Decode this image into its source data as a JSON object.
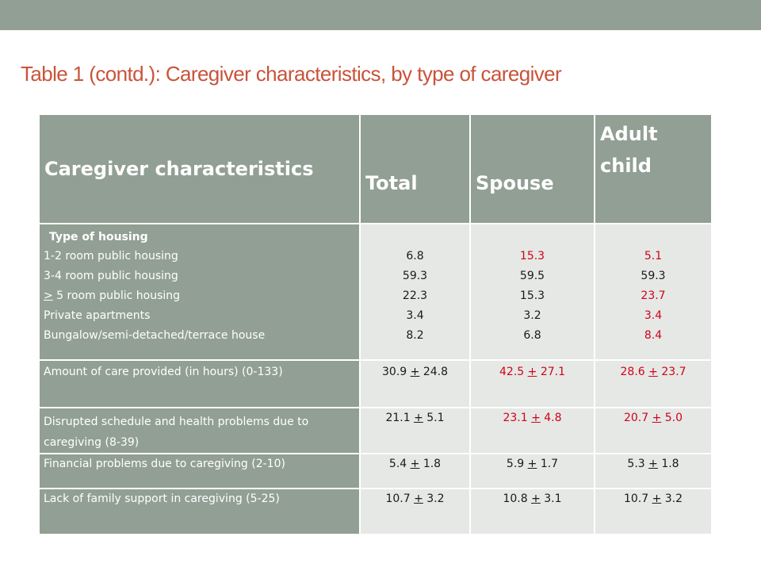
{
  "title": "Table 1 (contd.): Caregiver characteristics, by type of caregiver",
  "colors": {
    "header_bg": "#929f94",
    "title": "#c8543a",
    "highlight": "#d0021b",
    "cell_bg": "#e6e8e5"
  },
  "headers": {
    "col1": "Caregiver characteristics",
    "col2": "Total",
    "col3": "Spouse",
    "col4": "Adult child"
  },
  "housing": {
    "heading": "Type of housing",
    "rows": [
      {
        "label": "1-2 room public housing",
        "total": "6.8",
        "spouse": "15.3",
        "adult_child": "5.1"
      },
      {
        "label": "3-4 room public housing",
        "total": "59.3",
        "spouse": "59.5",
        "adult_child": "59.3"
      },
      {
        "label_sym": ">",
        "label": " 5 room public housing",
        "total": "22.3",
        "spouse": "15.3",
        "adult_child": "23.7"
      },
      {
        "label": "Private apartments",
        "total": "3.4",
        "spouse": "3.2",
        "adult_child": "3.4"
      },
      {
        "label": "Bungalow/semi-detached/terrace house",
        "total": "8.2",
        "spouse": "6.8",
        "adult_child": "8.4"
      }
    ]
  },
  "rows": [
    {
      "label": "Amount of care provided (in hours) (0-133)",
      "total": {
        "mean": "30.9",
        "pm": "+",
        "sd": "24.8"
      },
      "spouse": {
        "mean": "42.5",
        "pm": "+",
        "sd": "27.1"
      },
      "adult_child": {
        "mean": "28.6",
        "pm": "+",
        "sd": "23.7"
      }
    },
    {
      "label": "Disrupted schedule and health problems due to caregiving (8-39)",
      "total": {
        "mean": "21.1",
        "pm": "+",
        "sd": "5.1"
      },
      "spouse": {
        "mean": "23.1",
        "pm": "+",
        "sd": "4.8"
      },
      "adult_child": {
        "mean": "20.7",
        "pm": "+",
        "sd": "5.0"
      }
    },
    {
      "label": "Financial problems due to caregiving (2-10)",
      "total": {
        "mean": "5.4",
        "pm": "+",
        "sd": "1.8"
      },
      "spouse": {
        "mean": "5.9",
        "pm": "+",
        "sd": "1.7"
      },
      "adult_child": {
        "mean": "5.3",
        "pm": "+",
        "sd": "1.8"
      }
    },
    {
      "label": "Lack of family support in caregiving (5-25)",
      "total": {
        "mean": "10.7",
        "pm": "+",
        "sd": "3.2"
      },
      "spouse": {
        "mean": "10.8",
        "pm": "+",
        "sd": "3.1"
      },
      "adult_child": {
        "mean": "10.7",
        "pm": "+",
        "sd": "3.2"
      }
    }
  ]
}
